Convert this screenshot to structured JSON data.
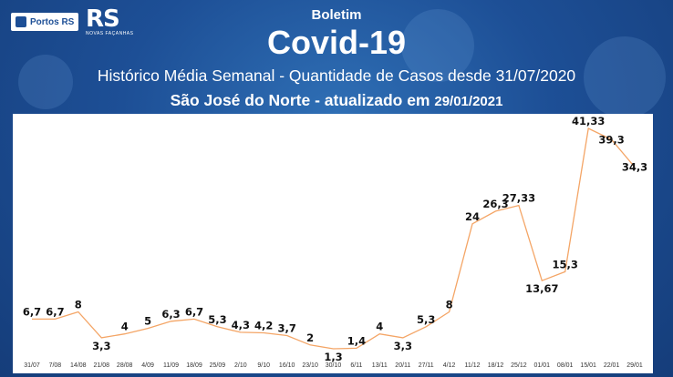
{
  "header": {
    "brand": "Portos RS",
    "title_small": "Boletim",
    "title_big": "Covid-19",
    "subtitle": "Histórico Média Semanal - Quantidade de Casos desde 31/07/2020",
    "location": "São José do Norte - atualizado em",
    "updated": "29/01/2021"
  },
  "colors": {
    "line": "#f4a566",
    "label": "#111111",
    "background": "#1d4f96"
  },
  "chart_data": {
    "type": "line",
    "title": "Histórico Média Semanal - Quantidade de Casos desde 31/07/2020",
    "xlabel": "",
    "ylabel": "",
    "grid": false,
    "categories": [
      "31/07",
      "7/08",
      "14/08",
      "21/08",
      "28/08",
      "4/09",
      "11/09",
      "18/09",
      "25/09",
      "2/10",
      "9/10",
      "16/10",
      "23/10",
      "30/10",
      "6/11",
      "13/11",
      "20/11",
      "27/11",
      "4/12",
      "11/12",
      "18/12",
      "25/12",
      "01/01",
      "08/01",
      "15/01",
      "22/01",
      "29/01"
    ],
    "value_labels": [
      "6,7",
      "6,7",
      "8",
      "3,3",
      "4",
      "5",
      "6,3",
      "6,7",
      "5,3",
      "4,3",
      "4,2",
      "3,7",
      "2",
      "1,3",
      "1,4",
      "4",
      "3,3",
      "5,3",
      "8",
      "24",
      "26,3",
      "27,33",
      "13,67",
      "15,3",
      "41,33",
      "39,3",
      "34,3"
    ],
    "series": [
      {
        "values": [
          6.7,
          6.7,
          8,
          3.3,
          4,
          5,
          6.3,
          6.7,
          5.3,
          4.3,
          4.2,
          3.7,
          2,
          1.3,
          1.4,
          4,
          3.3,
          5.3,
          8,
          24,
          26.3,
          27.33,
          13.67,
          15.3,
          41.33,
          39.3,
          34.3
        ]
      }
    ]
  }
}
